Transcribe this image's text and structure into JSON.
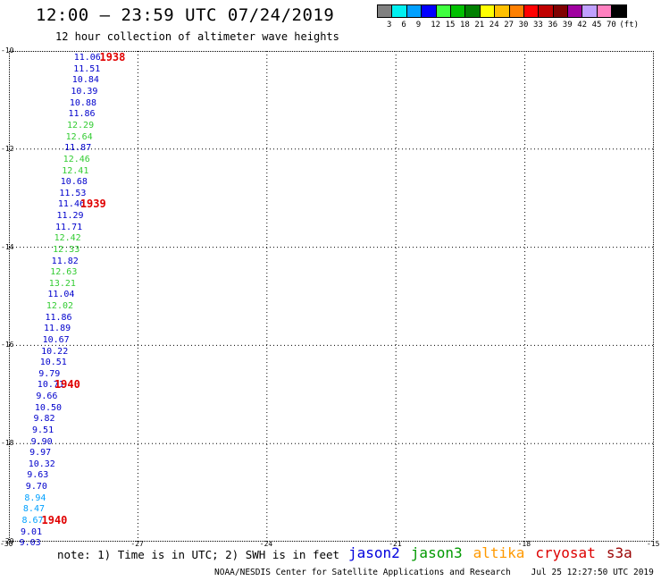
{
  "header": {
    "title": "12:00 – 23:59 UTC 07/24/2019",
    "subtitle": "12 hour collection of altimeter wave heights"
  },
  "colorbar": {
    "unit": "(ft)",
    "colors": [
      "#808080",
      "#00f0f0",
      "#00a0ff",
      "#0000ff",
      "#40ff40",
      "#00c000",
      "#008000",
      "#ffff00",
      "#ffc000",
      "#ff8000",
      "#ff0000",
      "#c00000",
      "#800000",
      "#a000a0",
      "#c0a0ff",
      "#ff80c0",
      "#000000"
    ],
    "labels": [
      "3",
      "6",
      "9",
      "12",
      "15",
      "18",
      "21",
      "24",
      "27",
      "30",
      "33",
      "36",
      "39",
      "42",
      "45",
      "70",
      "(ft)"
    ]
  },
  "map": {
    "lat_labels": [
      "-10",
      "-12",
      "-14",
      "-16",
      "-18",
      "-20"
    ],
    "lon_labels": [
      "-30",
      "-27",
      "-24",
      "-21",
      "-18",
      "-15"
    ],
    "times": [
      "1938",
      "1939",
      "1940",
      "1940"
    ],
    "tracks": [
      {
        "name": "jason2",
        "color": "#0000cc"
      },
      {
        "name": "jason3",
        "color": "#33cc33"
      }
    ]
  },
  "chart_data": {
    "type": "scatter",
    "title": "12 hour collection of altimeter wave heights",
    "xlim": [
      -30,
      -15
    ],
    "ylim": [
      -20,
      -10
    ],
    "points": [
      {
        "lon": -28.24,
        "lat": -10.15,
        "v": "11.06",
        "c": "#0000cc"
      },
      {
        "lon": -28.25,
        "lat": -10.38,
        "v": "11.51",
        "c": "#0000cc"
      },
      {
        "lon": -28.28,
        "lat": -10.61,
        "v": "10.84",
        "c": "#0000cc"
      },
      {
        "lon": -28.31,
        "lat": -10.84,
        "v": "10.39",
        "c": "#0000cc"
      },
      {
        "lon": -28.34,
        "lat": -11.07,
        "v": "10.88",
        "c": "#0000cc"
      },
      {
        "lon": -28.37,
        "lat": -11.3,
        "v": "11.86",
        "c": "#0000cc"
      },
      {
        "lon": -28.4,
        "lat": -11.53,
        "v": "12.29",
        "c": "#33cc33"
      },
      {
        "lon": -28.43,
        "lat": -11.76,
        "v": "12.64",
        "c": "#33cc33"
      },
      {
        "lon": -28.46,
        "lat": -11.99,
        "v": "11.87",
        "c": "#0000cc"
      },
      {
        "lon": -28.49,
        "lat": -12.22,
        "v": "12.46",
        "c": "#33cc33"
      },
      {
        "lon": -28.52,
        "lat": -12.45,
        "v": "12.41",
        "c": "#33cc33"
      },
      {
        "lon": -28.55,
        "lat": -12.68,
        "v": "10.68",
        "c": "#0000cc"
      },
      {
        "lon": -28.58,
        "lat": -12.91,
        "v": "11.53",
        "c": "#0000cc"
      },
      {
        "lon": -28.61,
        "lat": -13.14,
        "v": "11.46",
        "c": "#0000cc"
      },
      {
        "lon": -28.64,
        "lat": -13.37,
        "v": "11.29",
        "c": "#0000cc"
      },
      {
        "lon": -28.67,
        "lat": -13.6,
        "v": "11.71",
        "c": "#0000cc"
      },
      {
        "lon": -28.7,
        "lat": -13.83,
        "v": "12.42",
        "c": "#33cc33"
      },
      {
        "lon": -28.73,
        "lat": -14.06,
        "v": "12.33",
        "c": "#33cc33"
      },
      {
        "lon": -28.76,
        "lat": -14.29,
        "v": "11.82",
        "c": "#0000cc"
      },
      {
        "lon": -28.79,
        "lat": -14.52,
        "v": "12.63",
        "c": "#33cc33"
      },
      {
        "lon": -28.82,
        "lat": -14.75,
        "v": "13.21",
        "c": "#33cc33"
      },
      {
        "lon": -28.85,
        "lat": -14.98,
        "v": "11.04",
        "c": "#0000cc"
      },
      {
        "lon": -28.88,
        "lat": -15.21,
        "v": "12.02",
        "c": "#33cc33"
      },
      {
        "lon": -28.91,
        "lat": -15.44,
        "v": "11.86",
        "c": "#0000cc"
      },
      {
        "lon": -28.94,
        "lat": -15.67,
        "v": "11.89",
        "c": "#0000cc"
      },
      {
        "lon": -28.97,
        "lat": -15.9,
        "v": "10.67",
        "c": "#0000cc"
      },
      {
        "lon": -29.0,
        "lat": -16.13,
        "v": "10.22",
        "c": "#0000cc"
      },
      {
        "lon": -29.03,
        "lat": -16.36,
        "v": "10.51",
        "c": "#0000cc"
      },
      {
        "lon": -29.06,
        "lat": -16.59,
        "v": "9.79",
        "c": "#0000cc"
      },
      {
        "lon": -29.09,
        "lat": -16.82,
        "v": "10.71",
        "c": "#0000cc"
      },
      {
        "lon": -29.12,
        "lat": -17.05,
        "v": "9.66",
        "c": "#0000cc"
      },
      {
        "lon": -29.15,
        "lat": -17.28,
        "v": "10.50",
        "c": "#0000cc"
      },
      {
        "lon": -29.18,
        "lat": -17.51,
        "v": "9.82",
        "c": "#0000cc"
      },
      {
        "lon": -29.21,
        "lat": -17.74,
        "v": "9.51",
        "c": "#0000cc"
      },
      {
        "lon": -29.24,
        "lat": -17.97,
        "v": "9.90",
        "c": "#0000cc"
      },
      {
        "lon": -29.27,
        "lat": -18.2,
        "v": "9.97",
        "c": "#0000cc"
      },
      {
        "lon": -29.3,
        "lat": -18.43,
        "v": "10.32",
        "c": "#0000cc"
      },
      {
        "lon": -29.33,
        "lat": -18.66,
        "v": "9.63",
        "c": "#0000cc"
      },
      {
        "lon": -29.36,
        "lat": -18.89,
        "v": "9.70",
        "c": "#0000cc"
      },
      {
        "lon": -29.39,
        "lat": -19.12,
        "v": "8.94",
        "c": "#00a0ff"
      },
      {
        "lon": -29.42,
        "lat": -19.35,
        "v": "8.47",
        "c": "#00a0ff"
      },
      {
        "lon": -29.45,
        "lat": -19.58,
        "v": "8.67",
        "c": "#00a0ff"
      },
      {
        "lon": -29.48,
        "lat": -19.81,
        "v": "9.01",
        "c": "#0000cc"
      },
      {
        "lon": -29.51,
        "lat": -20.04,
        "v": "9.03",
        "c": "#0000cc"
      }
    ],
    "time_marks": [
      {
        "lon": -27.85,
        "lat": -10.15,
        "t": "1938"
      },
      {
        "lon": -28.3,
        "lat": -13.14,
        "t": "1939"
      },
      {
        "lon": -28.9,
        "lat": -16.82,
        "t": "1940"
      },
      {
        "lon": -29.2,
        "lat": -19.58,
        "t": "1940"
      }
    ]
  },
  "footer": {
    "note": "note: 1) Time is in UTC; 2) SWH is in feet",
    "legend": [
      {
        "label": "jason2",
        "color": "#0000dd"
      },
      {
        "label": "jason3",
        "color": "#009900"
      },
      {
        "label": "altika",
        "color": "#ff9900"
      },
      {
        "label": "cryosat",
        "color": "#dd0000"
      },
      {
        "label": "s3a",
        "color": "#990000"
      }
    ],
    "credit": "NOAA/NESDIS Center for Satellite Applications and Research    Jul 25 12:27:50 UTC 2019"
  }
}
